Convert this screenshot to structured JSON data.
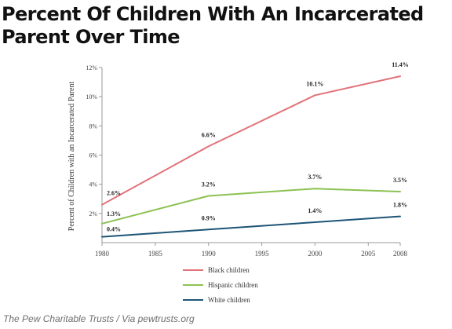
{
  "headline": "Percent Of Children With An Incarcerated Parent Over Time",
  "source_credit": "The Pew Charitable Trusts / Via pewtrusts.org",
  "chart_data": {
    "type": "line",
    "title": "",
    "xlabel": "",
    "ylabel": "Percent of Children with an Incarcerated Parent",
    "xlim": [
      1980,
      2008
    ],
    "ylim": [
      0,
      12
    ],
    "x_ticks": [
      1980,
      1985,
      1990,
      1995,
      2000,
      2005,
      2008
    ],
    "y_ticks": [
      2,
      4,
      6,
      8,
      10,
      12
    ],
    "y_tick_suffix": "%",
    "grid": false,
    "legend_position": "bottom-center",
    "series": [
      {
        "name": "Black children",
        "color": "#e2727a",
        "x": [
          1980,
          1990,
          2000,
          2008
        ],
        "values": [
          2.6,
          6.6,
          10.1,
          11.4
        ],
        "labels": [
          "2.6%",
          "6.6%",
          "10.1%",
          "11.4%"
        ]
      },
      {
        "name": "Hispanic children",
        "color": "#8cc152",
        "x": [
          1980,
          1990,
          2000,
          2008
        ],
        "values": [
          1.3,
          3.2,
          3.7,
          3.5
        ],
        "labels": [
          "1.3%",
          "3.2%",
          "3.7%",
          "3.5%"
        ]
      },
      {
        "name": "White children",
        "color": "#1d5577",
        "x": [
          1980,
          1990,
          2000,
          2008
        ],
        "values": [
          0.4,
          0.9,
          1.4,
          1.8
        ],
        "labels": [
          "0.4%",
          "0.9%",
          "1.4%",
          "1.8%"
        ]
      }
    ]
  }
}
